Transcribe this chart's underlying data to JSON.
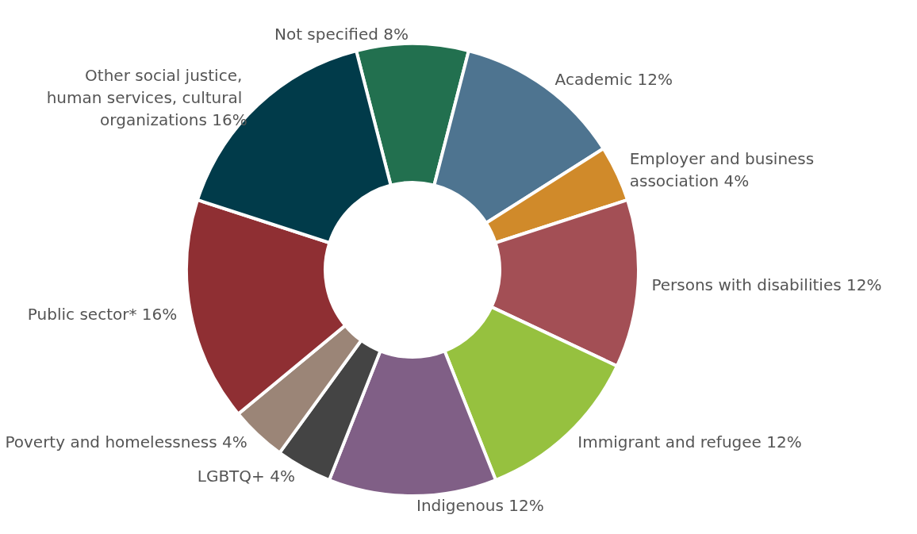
{
  "chart_data": {
    "type": "donut",
    "categories": [
      "Not specified",
      "Academic",
      "Employer and business association",
      "Persons with disabilities",
      "Immigrant and refugee",
      "Indigenous",
      "LGBTQ+",
      "Poverty and homelessness",
      "Public sector*",
      "Other social justice, human services, cultural organizations"
    ],
    "values": [
      8,
      12,
      4,
      12,
      12,
      12,
      4,
      4,
      16,
      16
    ],
    "value_labels": [
      "8%",
      "12%",
      "4%",
      "12%",
      "12%",
      "12%",
      "4%",
      "4%",
      "16%",
      "16%"
    ],
    "colors": [
      "#22704f",
      "#4e7490",
      "#d08a2a",
      "#a34f55",
      "#96c13f",
      "#805f86",
      "#444444",
      "#9b8577",
      "#8f2f33",
      "#013b4a"
    ]
  }
}
